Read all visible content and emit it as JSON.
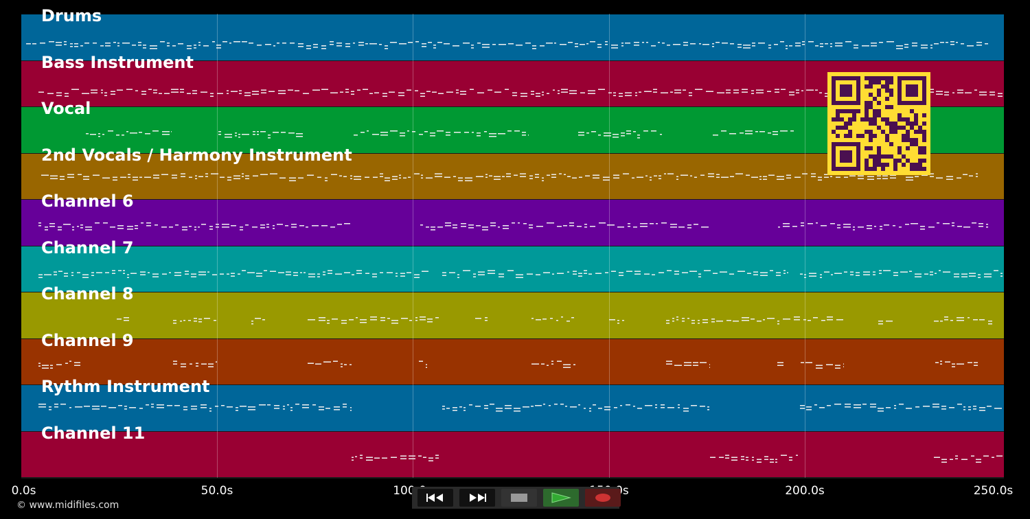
{
  "tracks": [
    {
      "name": "Drums",
      "color": "#006699"
    },
    {
      "name": "Bass Instrument",
      "color": "#990033"
    },
    {
      "name": "Vocal",
      "color": "#009933"
    },
    {
      "name": "2nd Vocals / Harmony Instrument",
      "color": "#996600"
    },
    {
      "name": "Channel 6",
      "color": "#660099"
    },
    {
      "name": "Channel 7",
      "color": "#009999"
    },
    {
      "name": "Channel 8",
      "color": "#999900"
    },
    {
      "name": "Channel 9",
      "color": "#993300"
    },
    {
      "name": "Rythm Instrument",
      "color": "#006699"
    },
    {
      "name": "Channel 11",
      "color": "#990033"
    }
  ],
  "timeline": {
    "ticks": [
      "0.0s",
      "50.0s",
      "100.0s",
      "150.0s",
      "200.0s",
      "250.0s"
    ]
  },
  "copyright": "© www.midifiles.com",
  "transport": {
    "rewind_icon": "rewind-icon",
    "forward_icon": "fast-forward-icon",
    "stop_icon": "stop-icon",
    "play_icon": "play-icon",
    "record_icon": "record-icon",
    "play_color": "#33aa33",
    "record_color": "#cc3333"
  },
  "qr_code": {
    "icon": "qr-code-icon",
    "color": "#ffdd33"
  }
}
